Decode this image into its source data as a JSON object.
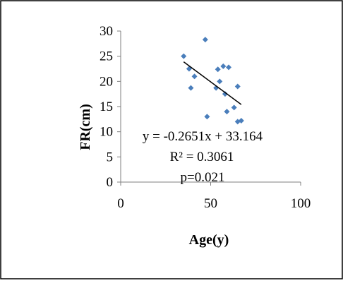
{
  "chart_data": {
    "type": "scatter",
    "title": "",
    "xlabel": "Age(y)",
    "ylabel": "FR(cm)",
    "xlim": [
      0,
      100
    ],
    "ylim": [
      0,
      30
    ],
    "x_ticks": [
      0,
      50,
      100
    ],
    "y_ticks": [
      0,
      5,
      10,
      15,
      20,
      25,
      30
    ],
    "x_tick_labels": [
      "0",
      "50",
      "100"
    ],
    "y_tick_labels": [
      "0",
      "5",
      "10",
      "15",
      "20",
      "25",
      "30"
    ],
    "grid": false,
    "legend": "none",
    "marker_color": "#4a7ebb",
    "series": [
      {
        "points": [
          {
            "x": 35,
            "y": 25
          },
          {
            "x": 38,
            "y": 22.5
          },
          {
            "x": 39,
            "y": 18.7
          },
          {
            "x": 41,
            "y": 21
          },
          {
            "x": 47,
            "y": 28.3
          },
          {
            "x": 48,
            "y": 13
          },
          {
            "x": 53,
            "y": 18.7
          },
          {
            "x": 54,
            "y": 22.4
          },
          {
            "x": 55,
            "y": 20
          },
          {
            "x": 57,
            "y": 23
          },
          {
            "x": 58,
            "y": 17.5
          },
          {
            "x": 59,
            "y": 14
          },
          {
            "x": 60,
            "y": 22.8
          },
          {
            "x": 63,
            "y": 14.8
          },
          {
            "x": 65,
            "y": 19
          },
          {
            "x": 65,
            "y": 12
          },
          {
            "x": 67,
            "y": 12.2
          }
        ]
      }
    ],
    "trendline": {
      "slope": -0.2651,
      "intercept": 33.164,
      "x_range": [
        35,
        67
      ],
      "color": "#000000"
    },
    "annotations": {
      "equation": "y = -0.2651x + 33.164",
      "r_squared": "R² = 0.3061",
      "p_value": "p=0.021"
    }
  }
}
